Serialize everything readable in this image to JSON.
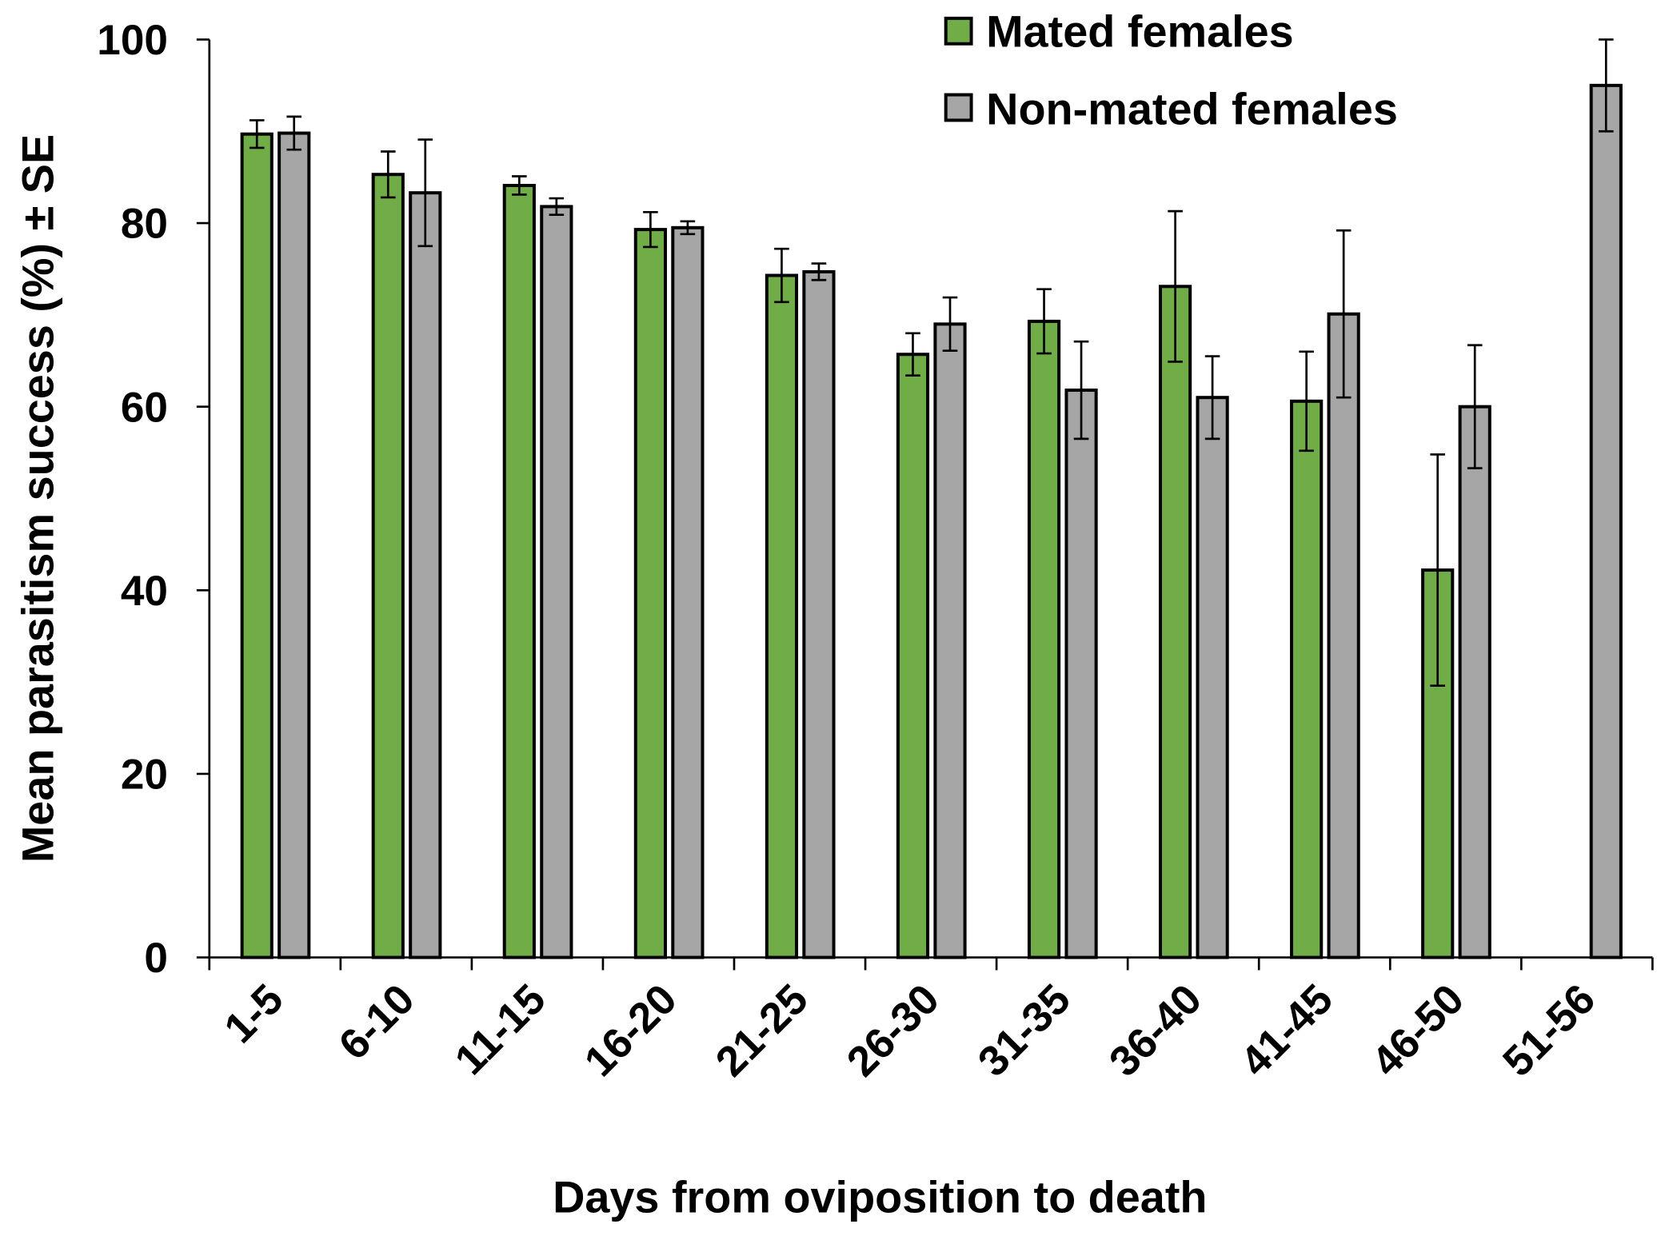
{
  "chart_data": {
    "type": "bar",
    "title": "",
    "xlabel": "Days from oviposition to death",
    "ylabel": "Mean parasitism success (%) ± SE",
    "ylim": [
      0,
      100
    ],
    "yticks": [
      "0",
      "20",
      "40",
      "60",
      "80",
      "100"
    ],
    "ytick_values": [
      0,
      20,
      40,
      60,
      80,
      100
    ],
    "grid": false,
    "legend_position": "top-right",
    "categories": [
      "1-5",
      "6-10",
      "11-15",
      "16-20",
      "21-25",
      "26-30",
      "31-35",
      "36-40",
      "41-45",
      "46-50",
      "51-56"
    ],
    "series": [
      {
        "name": "Mated females",
        "color": "#70AD47",
        "values": [
          89.7,
          85.3,
          84.1,
          79.3,
          74.3,
          65.7,
          69.3,
          73.1,
          60.6,
          42.2,
          null
        ],
        "errors": [
          1.5,
          2.5,
          1.0,
          1.9,
          2.9,
          2.3,
          3.5,
          8.2,
          5.4,
          12.6,
          null
        ]
      },
      {
        "name": "Non-mated females",
        "color": "#A6A6A6",
        "values": [
          89.8,
          83.3,
          81.8,
          79.5,
          74.7,
          69.0,
          61.8,
          61.0,
          70.1,
          60.0,
          95.0
        ],
        "errors": [
          1.8,
          5.8,
          0.9,
          0.7,
          0.9,
          2.9,
          5.3,
          4.5,
          9.1,
          6.7,
          5.0
        ]
      }
    ]
  }
}
